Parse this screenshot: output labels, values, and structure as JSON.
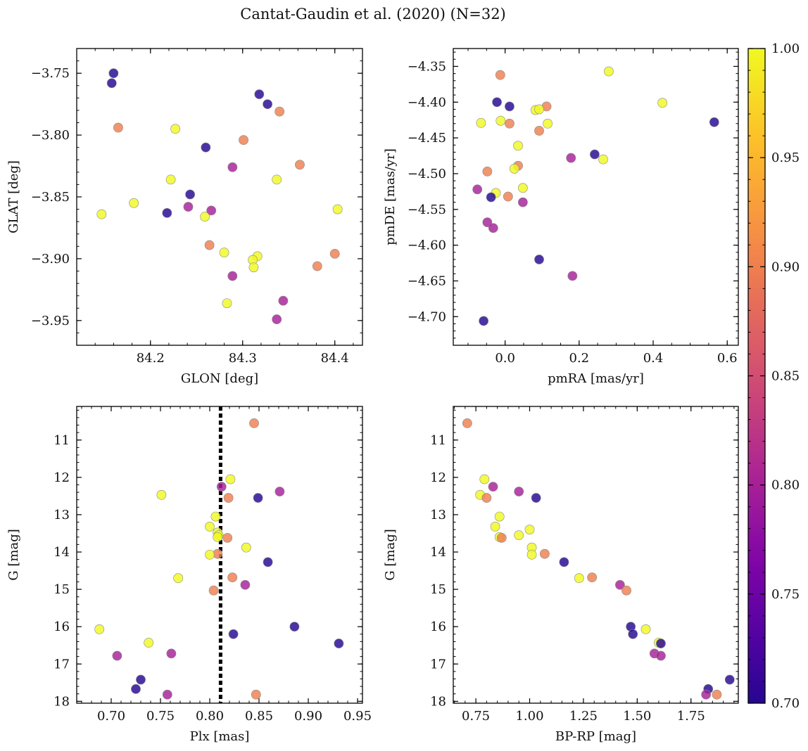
{
  "chart_data": {
    "title": "Cantat-Gaudin et al. (2020) (N=32)",
    "type": "scatter",
    "colorbar": {
      "cmap": "plasma",
      "vmin": 0.7,
      "vmax": 1.0,
      "ticks": [
        "0.70",
        "0.75",
        "0.80",
        "0.85",
        "0.90",
        "0.95",
        "1.00"
      ]
    },
    "panels": [
      {
        "id": "glon-glat",
        "xlabel": "GLON [deg]",
        "ylabel": "GLAT [deg]",
        "xlim": [
          84.12,
          84.43
        ],
        "ylim": [
          -3.97,
          -3.73
        ],
        "invert_y": false,
        "xticks": [
          "84.2",
          "84.3",
          "84.4"
        ],
        "xtick_values": [
          84.2,
          84.3,
          84.4
        ],
        "yticks": [
          "−3.75",
          "−3.80",
          "−3.85",
          "−3.90",
          "−3.95"
        ],
        "ytick_values": [
          -3.75,
          -3.8,
          -3.85,
          -3.9,
          -3.95
        ],
        "x": [
          84.16,
          84.158,
          84.318,
          84.327,
          84.165,
          84.227,
          84.34,
          84.26,
          84.301,
          84.289,
          84.362,
          84.222,
          84.243,
          84.337,
          84.147,
          84.182,
          84.218,
          84.241,
          84.266,
          84.259,
          84.403,
          84.264,
          84.28,
          84.316,
          84.311,
          84.312,
          84.4,
          84.381,
          84.289,
          84.344,
          84.283,
          84.337
        ],
        "y": [
          -3.75,
          -3.758,
          -3.767,
          -3.775,
          -3.794,
          -3.795,
          -3.781,
          -3.81,
          -3.804,
          -3.826,
          -3.824,
          -3.836,
          -3.848,
          -3.836,
          -3.864,
          -3.855,
          -3.863,
          -3.858,
          -3.861,
          -3.866,
          -3.86,
          -3.889,
          -3.895,
          -3.898,
          -3.901,
          -3.907,
          -3.896,
          -3.906,
          -3.914,
          -3.934,
          -3.936,
          -3.949
        ],
        "c": [
          0.7,
          0.7,
          0.7,
          0.7,
          0.9,
          1.0,
          0.9,
          0.7,
          0.9,
          0.8,
          0.9,
          1.0,
          0.7,
          1.0,
          1.0,
          1.0,
          0.7,
          0.8,
          0.8,
          1.0,
          1.0,
          0.9,
          1.0,
          1.0,
          1.0,
          1.0,
          0.9,
          0.9,
          0.8,
          0.8,
          1.0,
          0.8
        ]
      },
      {
        "id": "pmra-pmde",
        "xlabel": "pmRA [mas/yr]",
        "ylabel": "pmDE [mas/yr]",
        "xlim": [
          -0.14,
          0.63
        ],
        "ylim": [
          -4.74,
          -4.325
        ],
        "invert_y": false,
        "xticks": [
          "0.0",
          "0.2",
          "0.4",
          "0.6"
        ],
        "xtick_values": [
          0.0,
          0.2,
          0.4,
          0.6
        ],
        "yticks": [
          "−4.35",
          "−4.40",
          "−4.45",
          "−4.50",
          "−4.55",
          "−4.60",
          "−4.65",
          "−4.70"
        ],
        "ytick_values": [
          -4.35,
          -4.4,
          -4.45,
          -4.5,
          -4.55,
          -4.6,
          -4.65,
          -4.7
        ],
        "x": [
          -0.013,
          0.28,
          -0.022,
          0.012,
          0.112,
          0.082,
          0.092,
          -0.065,
          -0.012,
          0.012,
          0.115,
          0.092,
          0.565,
          0.425,
          0.035,
          0.242,
          0.265,
          0.178,
          0.035,
          -0.048,
          0.025,
          -0.075,
          -0.025,
          0.048,
          0.008,
          -0.038,
          0.048,
          -0.048,
          -0.032,
          0.092,
          0.182,
          -0.058
        ],
        "y": [
          -4.362,
          -4.357,
          -4.4,
          -4.406,
          -4.406,
          -4.411,
          -4.41,
          -4.429,
          -4.426,
          -4.43,
          -4.43,
          -4.44,
          -4.428,
          -4.401,
          -4.461,
          -4.473,
          -4.48,
          -4.478,
          -4.489,
          -4.497,
          -4.493,
          -4.522,
          -4.527,
          -4.52,
          -4.532,
          -4.533,
          -4.54,
          -4.568,
          -4.576,
          -4.62,
          -4.643,
          -4.706
        ],
        "c": [
          0.9,
          1.0,
          0.7,
          0.7,
          0.9,
          1.0,
          1.0,
          1.0,
          1.0,
          0.9,
          1.0,
          0.9,
          0.7,
          1.0,
          1.0,
          0.7,
          1.0,
          0.8,
          0.9,
          0.9,
          1.0,
          0.8,
          1.0,
          1.0,
          0.9,
          0.7,
          0.8,
          0.8,
          0.8,
          0.7,
          0.8,
          0.7
        ]
      },
      {
        "id": "plx-g",
        "xlabel": "Plx [mas]",
        "ylabel": "G [mag]",
        "xlim": [
          0.665,
          0.955
        ],
        "ylim": [
          10.1,
          18.05
        ],
        "invert_y": true,
        "xticks": [
          "0.70",
          "0.75",
          "0.80",
          "0.85",
          "0.90",
          "0.95"
        ],
        "xtick_values": [
          0.7,
          0.75,
          0.8,
          0.85,
          0.9,
          0.95
        ],
        "yticks": [
          "11",
          "12",
          "13",
          "14",
          "15",
          "16",
          "17",
          "18"
        ],
        "ytick_values": [
          11,
          12,
          13,
          14,
          15,
          16,
          17,
          18
        ],
        "vline": 0.811,
        "x": [
          0.845,
          0.821,
          0.812,
          0.871,
          0.751,
          0.819,
          0.849,
          0.806,
          0.8,
          0.808,
          0.809,
          0.808,
          0.818,
          0.837,
          0.808,
          0.8,
          0.859,
          0.768,
          0.823,
          0.836,
          0.804,
          0.688,
          0.886,
          0.824,
          0.738,
          0.931,
          0.706,
          0.761,
          0.73,
          0.725,
          0.757,
          0.847
        ],
        "y": [
          10.55,
          12.05,
          12.25,
          12.38,
          12.47,
          12.55,
          12.55,
          13.05,
          13.32,
          13.48,
          13.55,
          13.6,
          13.62,
          13.88,
          14.05,
          14.07,
          14.27,
          14.7,
          14.68,
          14.88,
          15.03,
          16.07,
          16.0,
          16.2,
          16.43,
          16.45,
          16.78,
          16.72,
          17.42,
          17.67,
          17.82,
          17.82
        ],
        "c": [
          0.9,
          1.0,
          0.8,
          0.8,
          1.0,
          0.9,
          0.7,
          1.0,
          1.0,
          1.0,
          1.0,
          1.0,
          0.9,
          1.0,
          0.9,
          1.0,
          0.7,
          1.0,
          0.9,
          0.8,
          0.9,
          1.0,
          0.7,
          0.7,
          1.0,
          0.7,
          0.8,
          0.8,
          0.7,
          0.7,
          0.8,
          0.9
        ]
      },
      {
        "id": "bprp-g",
        "xlabel": "BP-RP [mag]",
        "ylabel": "G [mag]",
        "xlim": [
          0.645,
          1.97
        ],
        "ylim": [
          10.1,
          18.05
        ],
        "invert_y": true,
        "xticks": [
          "0.75",
          "1.00",
          "1.25",
          "1.50",
          "1.75"
        ],
        "xtick_values": [
          0.75,
          1.0,
          1.25,
          1.5,
          1.75
        ],
        "yticks": [
          "11",
          "12",
          "13",
          "14",
          "15",
          "16",
          "17",
          "18"
        ],
        "ytick_values": [
          11,
          12,
          13,
          14,
          15,
          16,
          17,
          18
        ],
        "x": [
          0.71,
          0.79,
          0.83,
          0.77,
          0.8,
          0.95,
          1.03,
          0.86,
          0.84,
          0.86,
          0.87,
          0.95,
          1.0,
          1.01,
          1.07,
          1.01,
          1.16,
          1.29,
          1.23,
          1.42,
          1.45,
          1.47,
          1.48,
          1.54,
          1.6,
          1.61,
          1.58,
          1.61,
          1.93,
          1.83,
          1.82,
          1.87
        ],
        "y": [
          10.55,
          12.05,
          12.25,
          12.47,
          12.55,
          12.38,
          12.55,
          13.05,
          13.32,
          13.6,
          13.62,
          13.55,
          13.4,
          13.88,
          14.05,
          14.07,
          14.27,
          14.68,
          14.7,
          14.88,
          15.03,
          16.0,
          16.2,
          16.07,
          16.43,
          16.45,
          16.72,
          16.78,
          17.42,
          17.67,
          17.82,
          17.82
        ],
        "c": [
          0.9,
          1.0,
          0.8,
          1.0,
          0.9,
          0.8,
          0.7,
          1.0,
          1.0,
          1.0,
          0.9,
          1.0,
          1.0,
          1.0,
          0.9,
          1.0,
          0.7,
          0.9,
          1.0,
          0.8,
          0.9,
          0.7,
          0.7,
          1.0,
          1.0,
          0.7,
          0.8,
          0.8,
          0.7,
          0.7,
          0.8,
          0.9
        ]
      }
    ]
  }
}
